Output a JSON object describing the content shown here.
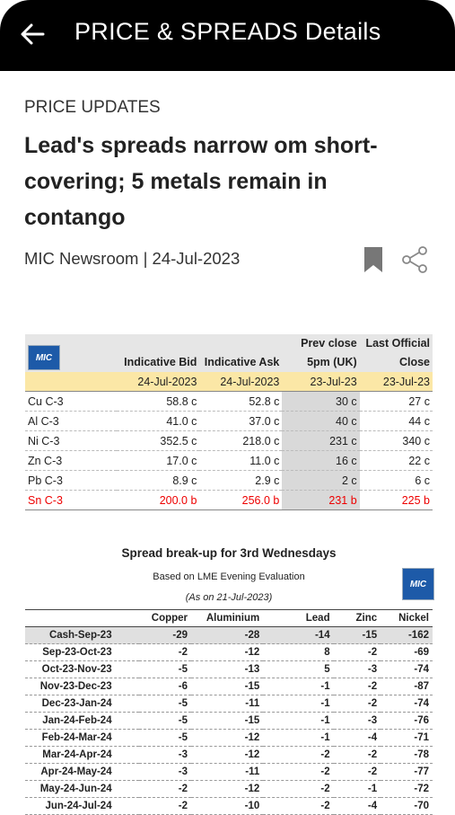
{
  "header": {
    "title": "PRICE & SPREADS Details"
  },
  "article": {
    "category": "PRICE UPDATES",
    "title": "Lead's spreads narrow om short-covering; 5 metals remain in contango",
    "byline": "MIC Newsroom | 24-Jul-2023"
  },
  "price_table": {
    "logo": "MIC",
    "columns": [
      "Indicative Bid",
      "Indicative Ask",
      "Prev close 5pm (UK)",
      "Last Official Close"
    ],
    "dates": [
      "24-Jul-2023",
      "24-Jul-2023",
      "23-Jul-23",
      "23-Jul-23"
    ],
    "rows": [
      [
        "Cu C-3",
        "58.8 c",
        "52.8 c",
        "30 c",
        "27 c"
      ],
      [
        "Al C-3",
        "41.0 c",
        "37.0 c",
        "40 c",
        "44 c"
      ],
      [
        "Ni C-3",
        "352.5 c",
        "218.0 c",
        "231 c",
        "340 c"
      ],
      [
        "Zn C-3",
        "17.0 c",
        "11.0 c",
        "16 c",
        "22 c"
      ],
      [
        "Pb C-3",
        "8.9 c",
        "2.9 c",
        "2 c",
        "6 c"
      ],
      [
        "Sn C-3",
        "200.0 b",
        "256.0 b",
        "231 b",
        "225 b"
      ]
    ]
  },
  "spread_table": {
    "title": "Spread break-up for 3rd Wednesdays",
    "subtitle": "Based on LME Evening Evaluation",
    "as_on": "(As on 21-Jul-2023)",
    "logo": "MIC",
    "columns": [
      "Copper",
      "Aluminium",
      "Lead",
      "Zinc",
      "Nickel"
    ],
    "rows": [
      [
        "Cash-Sep-23",
        "-29",
        "-28",
        "-14",
        "-15",
        "-162"
      ],
      [
        "Sep-23-Oct-23",
        "-2",
        "-12",
        "8",
        "-2",
        "-69"
      ],
      [
        "Oct-23-Nov-23",
        "-5",
        "-13",
        "5",
        "-3",
        "-74"
      ],
      [
        "Nov-23-Dec-23",
        "-6",
        "-15",
        "-1",
        "-2",
        "-87"
      ],
      [
        "Dec-23-Jan-24",
        "-5",
        "-11",
        "-1",
        "-2",
        "-74"
      ],
      [
        "Jan-24-Feb-24",
        "-5",
        "-15",
        "-1",
        "-3",
        "-76"
      ],
      [
        "Feb-24-Mar-24",
        "-5",
        "-12",
        "-1",
        "-4",
        "-71"
      ],
      [
        "Mar-24-Apr-24",
        "-3",
        "-12",
        "-2",
        "-2",
        "-78"
      ],
      [
        "Apr-24-May-24",
        "-3",
        "-11",
        "-2",
        "-2",
        "-77"
      ],
      [
        "May-24-Jun-24",
        "-2",
        "-12",
        "-2",
        "-1",
        "-72"
      ],
      [
        "Jun-24-Jul-24",
        "-2",
        "-10",
        "-2",
        "-4",
        "-70"
      ]
    ]
  }
}
